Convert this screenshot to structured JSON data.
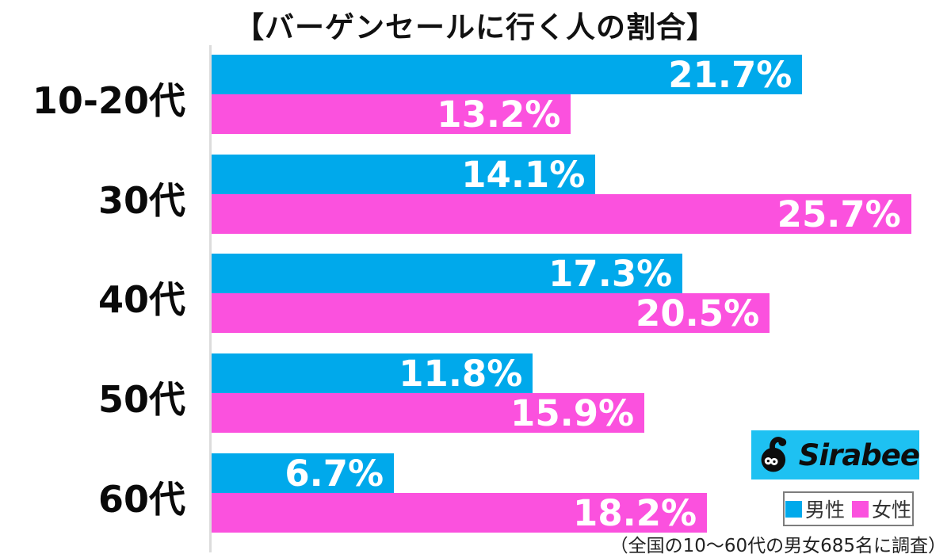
{
  "title": "【バーゲンセールに行く人の割合】",
  "footnote": "（全国の10〜60代の男女685名に調査）",
  "logo": {
    "text": "Sirabee"
  },
  "colors": {
    "male": "#00A9EB",
    "female": "#FB51DE",
    "logo_bg": "#1EC1F2",
    "axis": "#dcdcdc",
    "value_text": "#ffffff"
  },
  "chart_data": {
    "type": "bar",
    "orientation": "horizontal",
    "title": "【バーゲンセールに行く人の割合】",
    "categories": [
      "10-20代",
      "30代",
      "40代",
      "50代",
      "60代"
    ],
    "series": [
      {
        "name": "男性",
        "color": "#00A9EB",
        "values": [
          21.7,
          14.1,
          17.3,
          11.8,
          6.7
        ]
      },
      {
        "name": "女性",
        "color": "#FB51DE",
        "values": [
          13.2,
          25.7,
          20.5,
          15.9,
          18.2
        ]
      }
    ],
    "value_suffix": "%",
    "xlim": [
      0,
      27.2
    ],
    "grid": false,
    "legend_position": "bottom-right",
    "value_labels": "inside-end"
  }
}
